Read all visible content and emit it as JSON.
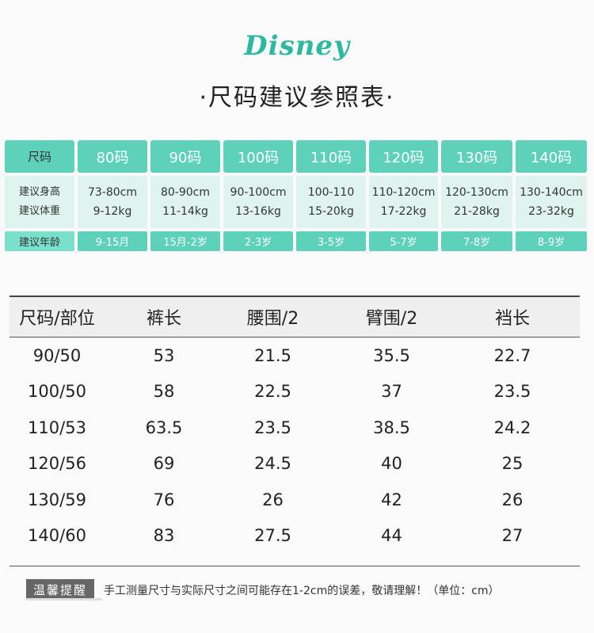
{
  "brand": {
    "logo_text": "Disney",
    "accent": "#5dd1b9"
  },
  "title": "·尺码建议参照表·",
  "size_chart": {
    "header_label": "尺码",
    "sizes": [
      "80码",
      "90码",
      "100码",
      "110码",
      "120码",
      "130码",
      "140码"
    ],
    "height_label": "建议身高",
    "weight_label": "建议体重",
    "heights": [
      "73-80cm",
      "80-90cm",
      "90-100cm",
      "100-110",
      "110-120cm",
      "120-130cm",
      "130-140cm"
    ],
    "weights": [
      "9-12kg",
      "11-14kg",
      "13-16kg",
      "15-20kg",
      "17-22kg",
      "21-28kg",
      "23-32kg"
    ],
    "age_label": "建议年龄",
    "ages": [
      "9-15月",
      "15月-2岁",
      "2-3岁",
      "3-5岁",
      "5-7岁",
      "7-8岁",
      "8-9岁"
    ]
  },
  "measure_table": {
    "headers": [
      "尺码/部位",
      "裤长",
      "腰围/2",
      "臂围/2",
      "裆长"
    ],
    "rows": [
      [
        "90/50",
        "53",
        "21.5",
        "35.5",
        "22.7"
      ],
      [
        "100/50",
        "58",
        "22.5",
        "37",
        "23.5"
      ],
      [
        "110/53",
        "63.5",
        "23.5",
        "38.5",
        "24.2"
      ],
      [
        "120/56",
        "69",
        "24.5",
        "40",
        "25"
      ],
      [
        "130/59",
        "76",
        "26",
        "42",
        "26"
      ],
      [
        "140/60",
        "83",
        "27.5",
        "44",
        "27"
      ]
    ]
  },
  "note": {
    "badge": "温馨提醒",
    "text": "手工测量尺寸与实际尺寸之间可能存在1-2cm的误差，敬请理解！（单位：cm）"
  }
}
